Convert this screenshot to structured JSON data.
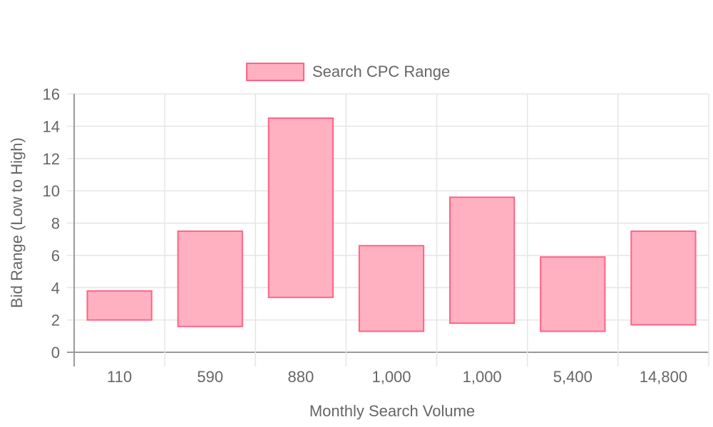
{
  "chart_data": {
    "type": "bar",
    "categories": [
      "110",
      "590",
      "880",
      "1,000",
      "1,000",
      "5,400",
      "14,800"
    ],
    "series": [
      {
        "name": "Search CPC Range",
        "ranges": [
          [
            2.0,
            3.8
          ],
          [
            1.6,
            7.5
          ],
          [
            3.4,
            14.5
          ],
          [
            1.3,
            6.6
          ],
          [
            1.8,
            9.6
          ],
          [
            1.3,
            5.9
          ],
          [
            1.7,
            7.5
          ]
        ],
        "color": "#ff6384",
        "fill": "#ffb1c1"
      }
    ],
    "xlabel": "Monthly Search Volume",
    "ylabel": "Bid Range (Low to High)",
    "ylim": [
      0,
      16
    ],
    "yticks": [
      "0",
      "2",
      "4",
      "6",
      "8",
      "10",
      "12",
      "14",
      "16"
    ],
    "grid": true,
    "legend_position": "top"
  }
}
